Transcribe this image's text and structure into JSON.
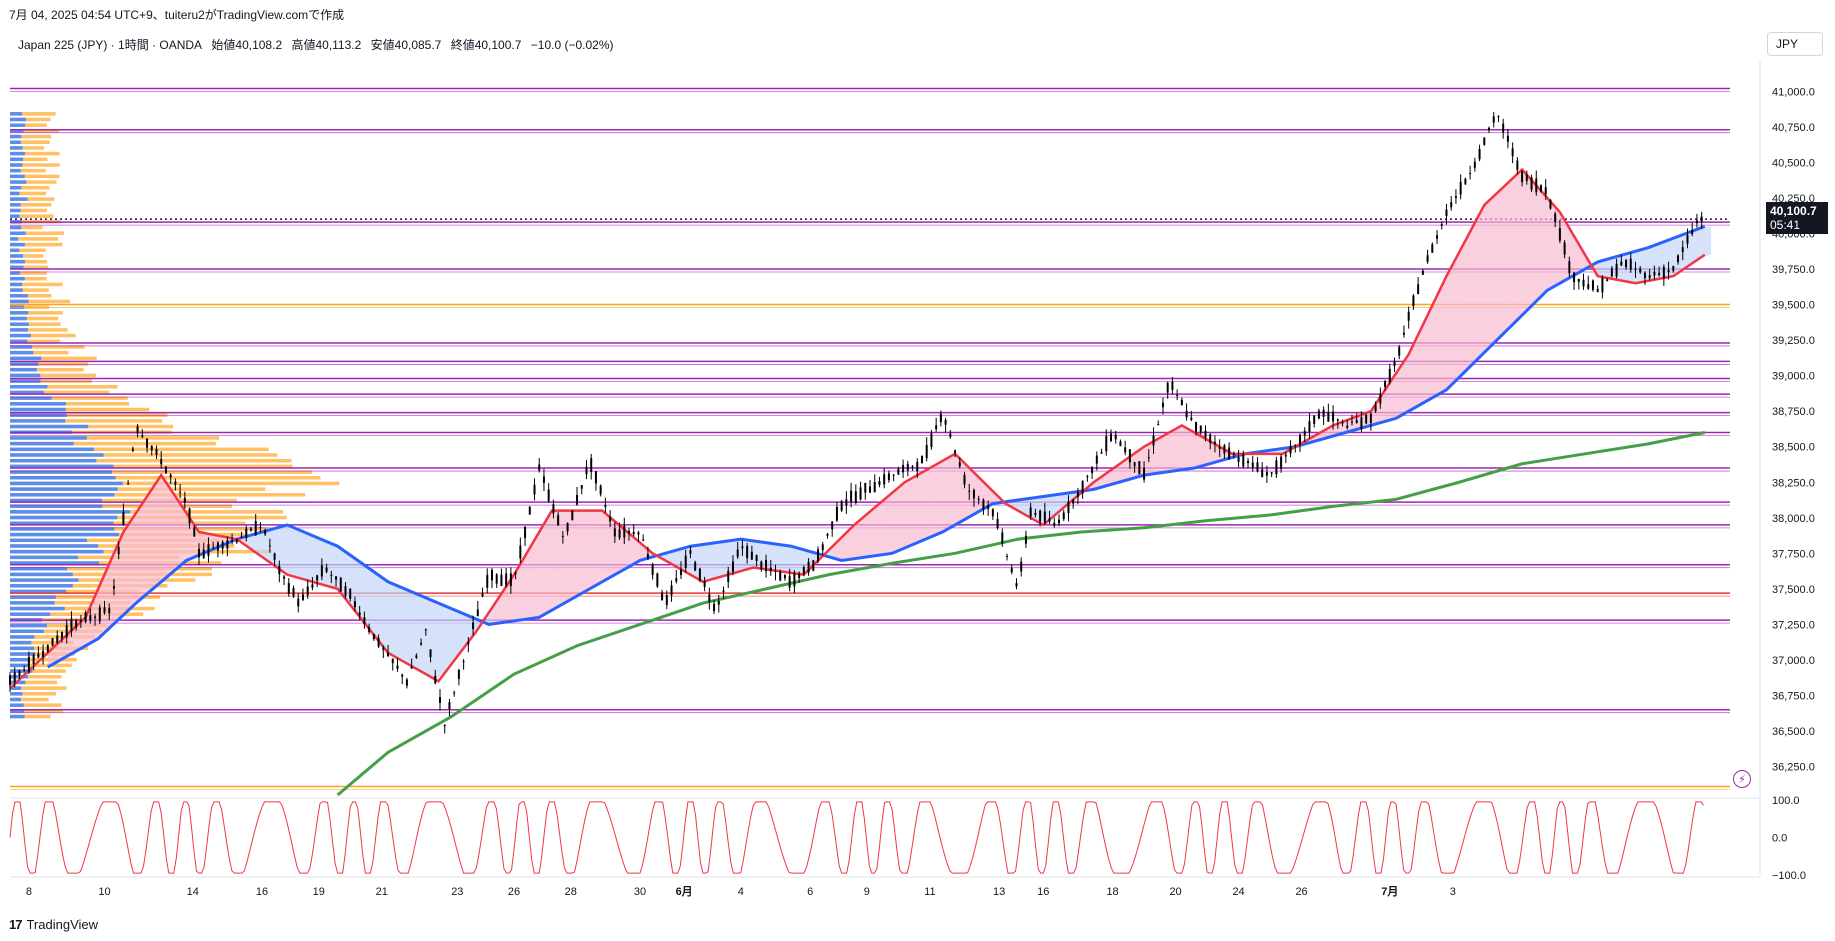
{
  "caption": "7月 04, 2025 04:54 UTC+9、tuiteru2がTradingView.comで作成",
  "legend": {
    "symbol": "Japan 225 (JPY) · 1時間 · OANDA",
    "open": "始値40,108.2",
    "high": "高値40,113.2",
    "low": "安値40,085.7",
    "close": "終値40,100.7",
    "change": "−10.0 (−0.02%)"
  },
  "currency": "JPY",
  "last_price": {
    "price": "40,100.7",
    "countdown": "05:41"
  },
  "footer_brand": "TradingView",
  "colors": {
    "candle": "#000000",
    "ema_fast": "#f23645",
    "ma_mid": "#2962ff",
    "ma_long": "#43a047",
    "level": "#9c27b0",
    "level_orange": "#f5a623",
    "level_red": "#e53935",
    "vp_up": "#5b8def",
    "vp_down": "#ffc164",
    "osc": "#f23645"
  },
  "chart_data": {
    "type": "line",
    "title": "",
    "xlabel": "",
    "ylabel": "",
    "y_range": [
      36050,
      41150
    ],
    "x_ticks": [
      "8",
      "10",
      "14",
      "16",
      "19",
      "21",
      "23",
      "26",
      "28",
      "30",
      "6月",
      "4",
      "6",
      "9",
      "11",
      "13",
      "16",
      "18",
      "20",
      "24",
      "26",
      "7月",
      "3"
    ],
    "y_ticks": [
      36250,
      36500,
      36750,
      37000,
      37250,
      37500,
      37750,
      38000,
      38250,
      38500,
      38750,
      39000,
      39250,
      39500,
      39750,
      40000,
      40250,
      40500,
      40750,
      41000
    ],
    "y_tick_labels": [
      "36,250.0",
      "36,500.0",
      "36,750.0",
      "37,000.0",
      "37,250.0",
      "37,500.0",
      "37,750.0",
      "38,000.0",
      "38,250.0",
      "38,500.0",
      "38,750.0",
      "39,000.0",
      "39,250.0",
      "39,500.0",
      "39,750.0",
      "40,000.0",
      "40,250.0",
      "40,500.0",
      "40,750.0",
      "41,000.0"
    ],
    "price_path": [
      [
        0,
        36850
      ],
      [
        1.0,
        37250
      ],
      [
        1.6,
        37350
      ],
      [
        2.0,
        38650
      ],
      [
        2.4,
        38400
      ],
      [
        2.8,
        38100
      ],
      [
        3.0,
        37750
      ],
      [
        3.6,
        37850
      ],
      [
        4.0,
        37950
      ],
      [
        4.3,
        37600
      ],
      [
        4.6,
        37400
      ],
      [
        5.0,
        37650
      ],
      [
        5.4,
        37450
      ],
      [
        5.8,
        37150
      ],
      [
        6.3,
        36850
      ],
      [
        6.6,
        37200
      ],
      [
        6.9,
        36550
      ],
      [
        7.2,
        37000
      ],
      [
        7.6,
        37600
      ],
      [
        8.0,
        37550
      ],
      [
        8.4,
        38350
      ],
      [
        8.8,
        37850
      ],
      [
        9.2,
        38400
      ],
      [
        9.6,
        37900
      ],
      [
        10.0,
        37900
      ],
      [
        10.4,
        37400
      ],
      [
        10.8,
        37750
      ],
      [
        11.2,
        37350
      ],
      [
        11.6,
        37800
      ],
      [
        12.0,
        37650
      ],
      [
        12.4,
        37550
      ],
      [
        12.8,
        37700
      ],
      [
        13.2,
        38100
      ],
      [
        13.6,
        38200
      ],
      [
        14.0,
        38300
      ],
      [
        14.5,
        38400
      ],
      [
        14.8,
        38750
      ],
      [
        15.2,
        38200
      ],
      [
        15.6,
        38050
      ],
      [
        16.0,
        37500
      ],
      [
        16.2,
        38050
      ],
      [
        16.6,
        37950
      ],
      [
        17.0,
        38200
      ],
      [
        17.5,
        38600
      ],
      [
        18.0,
        38300
      ],
      [
        18.4,
        38950
      ],
      [
        18.8,
        38650
      ],
      [
        19.2,
        38500
      ],
      [
        19.6,
        38400
      ],
      [
        20.0,
        38300
      ],
      [
        20.4,
        38500
      ],
      [
        20.8,
        38750
      ],
      [
        21.2,
        38650
      ],
      [
        21.6,
        38700
      ],
      [
        22.0,
        39100
      ],
      [
        22.4,
        39700
      ],
      [
        22.8,
        40150
      ],
      [
        23.2,
        40450
      ],
      [
        23.6,
        40850
      ],
      [
        24.0,
        40400
      ],
      [
        24.4,
        40300
      ],
      [
        24.8,
        39700
      ],
      [
        25.2,
        39600
      ],
      [
        25.6,
        39800
      ],
      [
        26.0,
        39700
      ],
      [
        26.4,
        39750
      ],
      [
        26.8,
        40100
      ]
    ],
    "ema_fast": [
      [
        0,
        36800
      ],
      [
        1.2,
        37300
      ],
      [
        1.8,
        37900
      ],
      [
        2.4,
        38300
      ],
      [
        3.0,
        37900
      ],
      [
        3.6,
        37850
      ],
      [
        4.4,
        37600
      ],
      [
        5.2,
        37500
      ],
      [
        6.0,
        37050
      ],
      [
        6.8,
        36850
      ],
      [
        7.4,
        37200
      ],
      [
        8.0,
        37600
      ],
      [
        8.6,
        38050
      ],
      [
        9.4,
        38050
      ],
      [
        10.2,
        37750
      ],
      [
        11.0,
        37550
      ],
      [
        11.8,
        37650
      ],
      [
        12.6,
        37600
      ],
      [
        13.4,
        37950
      ],
      [
        14.2,
        38250
      ],
      [
        15.0,
        38450
      ],
      [
        15.8,
        38100
      ],
      [
        16.4,
        37950
      ],
      [
        17.2,
        38250
      ],
      [
        18.0,
        38500
      ],
      [
        18.6,
        38650
      ],
      [
        19.4,
        38450
      ],
      [
        20.2,
        38450
      ],
      [
        21.0,
        38650
      ],
      [
        21.6,
        38750
      ],
      [
        22.2,
        39150
      ],
      [
        22.8,
        39700
      ],
      [
        23.4,
        40200
      ],
      [
        24.0,
        40450
      ],
      [
        24.6,
        40150
      ],
      [
        25.2,
        39700
      ],
      [
        25.8,
        39650
      ],
      [
        26.4,
        39700
      ],
      [
        26.9,
        39850
      ]
    ],
    "ma_mid": [
      [
        0.6,
        36950
      ],
      [
        1.4,
        37150
      ],
      [
        2.0,
        37400
      ],
      [
        2.8,
        37700
      ],
      [
        3.6,
        37850
      ],
      [
        4.4,
        37950
      ],
      [
        5.2,
        37800
      ],
      [
        6.0,
        37550
      ],
      [
        6.8,
        37400
      ],
      [
        7.6,
        37250
      ],
      [
        8.4,
        37300
      ],
      [
        9.2,
        37500
      ],
      [
        10.0,
        37700
      ],
      [
        10.8,
        37800
      ],
      [
        11.6,
        37850
      ],
      [
        12.4,
        37800
      ],
      [
        13.2,
        37700
      ],
      [
        14.0,
        37750
      ],
      [
        14.8,
        37900
      ],
      [
        15.6,
        38100
      ],
      [
        16.4,
        38150
      ],
      [
        17.2,
        38200
      ],
      [
        18.0,
        38300
      ],
      [
        18.8,
        38350
      ],
      [
        19.6,
        38450
      ],
      [
        20.4,
        38500
      ],
      [
        21.2,
        38600
      ],
      [
        22.0,
        38700
      ],
      [
        22.8,
        38900
      ],
      [
        23.6,
        39250
      ],
      [
        24.4,
        39600
      ],
      [
        25.2,
        39800
      ],
      [
        26.0,
        39900
      ],
      [
        26.9,
        40050
      ]
    ],
    "ma_long": [
      [
        5.2,
        36050
      ],
      [
        6.0,
        36350
      ],
      [
        7.0,
        36600
      ],
      [
        8.0,
        36900
      ],
      [
        9.0,
        37100
      ],
      [
        10.0,
        37250
      ],
      [
        11.0,
        37400
      ],
      [
        12.0,
        37500
      ],
      [
        13.0,
        37600
      ],
      [
        14.0,
        37680
      ],
      [
        15.0,
        37750
      ],
      [
        16.0,
        37850
      ],
      [
        17.0,
        37900
      ],
      [
        18.0,
        37930
      ],
      [
        19.0,
        37980
      ],
      [
        20.0,
        38020
      ],
      [
        21.0,
        38080
      ],
      [
        22.0,
        38130
      ],
      [
        23.0,
        38250
      ],
      [
        24.0,
        38380
      ],
      [
        25.0,
        38450
      ],
      [
        26.0,
        38520
      ],
      [
        26.9,
        38600
      ]
    ],
    "levels": [
      {
        "price": 41020,
        "color": "level"
      },
      {
        "price": 40730,
        "color": "level"
      },
      {
        "price": 40080,
        "color": "level"
      },
      {
        "price": 39750,
        "color": "level"
      },
      {
        "price": 39500,
        "color": "level_orange"
      },
      {
        "price": 39230,
        "color": "level"
      },
      {
        "price": 39100,
        "color": "level"
      },
      {
        "price": 38980,
        "color": "level"
      },
      {
        "price": 38870,
        "color": "level"
      },
      {
        "price": 38740,
        "color": "level"
      },
      {
        "price": 38600,
        "color": "level"
      },
      {
        "price": 38350,
        "color": "level"
      },
      {
        "price": 38110,
        "color": "level"
      },
      {
        "price": 37950,
        "color": "level"
      },
      {
        "price": 37670,
        "color": "level"
      },
      {
        "price": 37470,
        "color": "level_red"
      },
      {
        "price": 37280,
        "color": "level"
      },
      {
        "price": 36650,
        "color": "level"
      },
      {
        "price": 36110,
        "color": "level_orange"
      }
    ],
    "last_price_value": 40100.7,
    "oscillator": {
      "y_range": [
        -100,
        100
      ],
      "tick_labels": [
        "100.0",
        "0.0",
        "−100.0"
      ],
      "ticks": [
        100,
        0,
        -100
      ]
    }
  }
}
